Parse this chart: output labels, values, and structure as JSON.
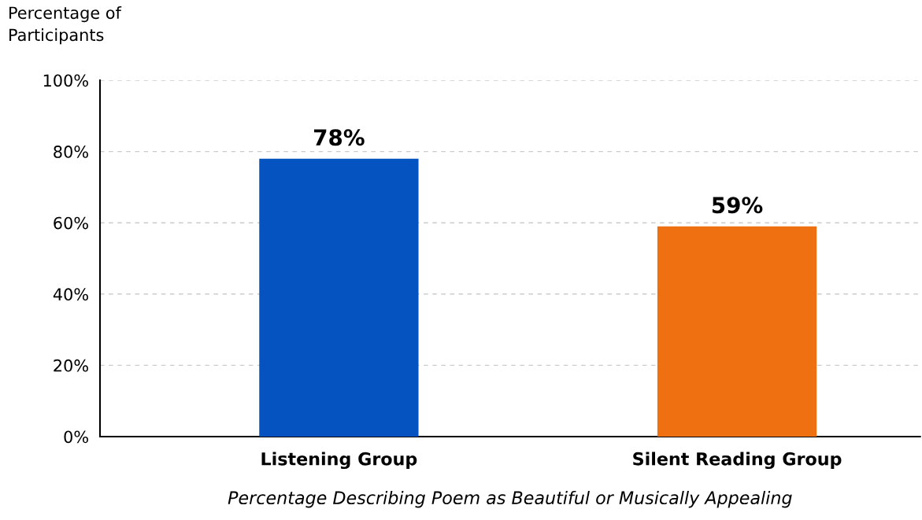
{
  "chart_data": {
    "type": "bar",
    "ylabel": "Percentage of\nParticipants",
    "xlabel": "Percentage Describing Poem as Beautiful or Musically Appealing",
    "categories": [
      "Listening Group",
      "Silent Reading Group"
    ],
    "values": [
      78,
      59
    ],
    "colors": [
      "#0553c0",
      "#ee7011"
    ],
    "value_labels": [
      "78%",
      "59%"
    ],
    "ylim": [
      0,
      100
    ],
    "yticks": [
      {
        "value": 0,
        "label": "0%"
      },
      {
        "value": 20,
        "label": "20%"
      },
      {
        "value": 40,
        "label": "40%"
      },
      {
        "value": 60,
        "label": "60%"
      },
      {
        "value": 80,
        "label": "80%"
      },
      {
        "value": 100,
        "label": "100%"
      }
    ],
    "grid": "y"
  }
}
